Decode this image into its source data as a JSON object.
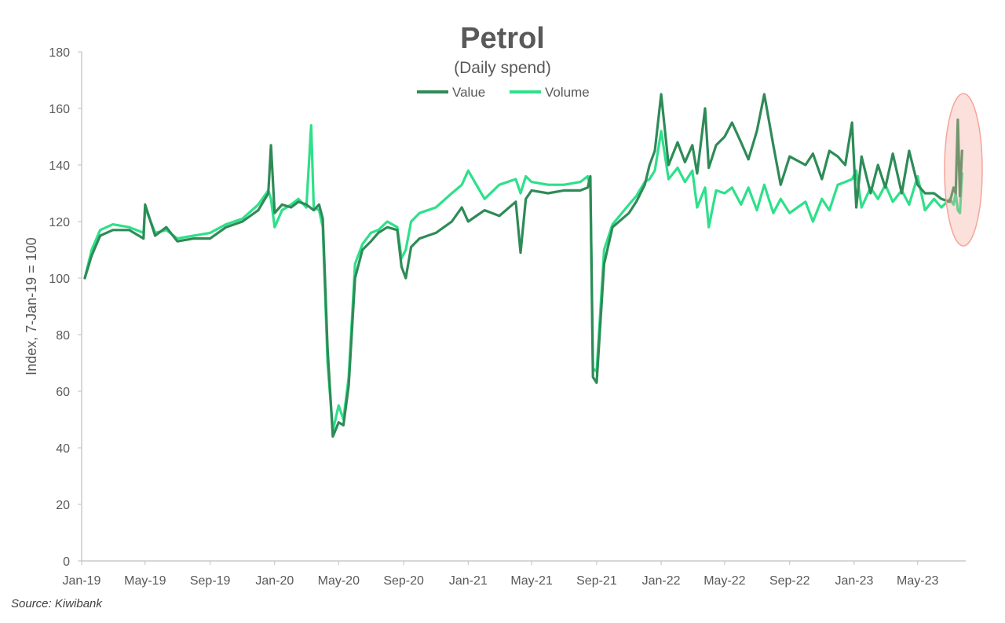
{
  "colors": {
    "value": "#2e8b57",
    "volume": "#2ee08a",
    "highlight": "#f4a59a",
    "axis": "#bfbfbf",
    "text": "#595959"
  },
  "source": "Source: Kiwibank",
  "chart_data": {
    "type": "line",
    "title": "Petrol",
    "subtitle": "(Daily spend)",
    "xlabel": "",
    "ylabel": "Index, 7-Jan-19 = 100",
    "ylim": [
      0,
      180
    ],
    "yticks": [
      "0",
      "20",
      "40",
      "60",
      "80",
      "100",
      "120",
      "140",
      "160",
      "180"
    ],
    "xlim": [
      "2019-01-01",
      "2023-07-31"
    ],
    "xticks": [
      "Jan-19",
      "May-19",
      "Sep-19",
      "Jan-20",
      "May-20",
      "Sep-20",
      "Jan-21",
      "May-21",
      "Sep-21",
      "Jan-22",
      "May-22",
      "Sep-22",
      "Jan-23",
      "May-23"
    ],
    "grid": false,
    "legend": "top-center",
    "annotation": "highlighted ellipse around latest data (Jul-23)",
    "series": [
      {
        "name": "Value",
        "x": [
          "2019-01-07",
          "2019-01-20",
          "2019-02-05",
          "2019-03-01",
          "2019-04-01",
          "2019-04-28",
          "2019-05-01",
          "2019-05-20",
          "2019-06-10",
          "2019-07-01",
          "2019-08-01",
          "2019-09-01",
          "2019-10-01",
          "2019-11-01",
          "2019-12-01",
          "2019-12-20",
          "2019-12-25",
          "2020-01-01",
          "2020-01-15",
          "2020-02-01",
          "2020-02-15",
          "2020-03-01",
          "2020-03-15",
          "2020-03-25",
          "2020-04-01",
          "2020-04-10",
          "2020-04-20",
          "2020-05-01",
          "2020-05-10",
          "2020-05-20",
          "2020-06-01",
          "2020-06-15",
          "2020-07-01",
          "2020-07-15",
          "2020-08-01",
          "2020-08-20",
          "2020-08-28",
          "2020-09-05",
          "2020-09-15",
          "2020-10-01",
          "2020-11-01",
          "2020-12-01",
          "2020-12-20",
          "2021-01-01",
          "2021-02-01",
          "2021-03-01",
          "2021-04-01",
          "2021-04-10",
          "2021-04-20",
          "2021-05-01",
          "2021-06-01",
          "2021-07-01",
          "2021-08-01",
          "2021-08-15",
          "2021-08-20",
          "2021-08-25",
          "2021-09-01",
          "2021-09-15",
          "2021-10-01",
          "2021-11-01",
          "2021-11-15",
          "2021-12-01",
          "2021-12-10",
          "2021-12-20",
          "2022-01-01",
          "2022-01-15",
          "2022-02-01",
          "2022-02-15",
          "2022-03-01",
          "2022-03-10",
          "2022-03-25",
          "2022-04-01",
          "2022-04-15",
          "2022-05-01",
          "2022-05-15",
          "2022-06-01",
          "2022-06-15",
          "2022-07-01",
          "2022-07-15",
          "2022-08-01",
          "2022-08-15",
          "2022-09-01",
          "2022-10-01",
          "2022-10-15",
          "2022-11-01",
          "2022-11-15",
          "2022-12-01",
          "2022-12-15",
          "2022-12-28",
          "2023-01-05",
          "2023-01-15",
          "2023-02-01",
          "2023-02-15",
          "2023-03-01",
          "2023-03-15",
          "2023-04-01",
          "2023-04-15",
          "2023-05-01",
          "2023-05-15",
          "2023-06-01",
          "2023-06-15",
          "2023-07-01",
          "2023-07-08",
          "2023-07-12",
          "2023-07-16",
          "2023-07-20",
          "2023-07-24"
        ],
        "values": [
          100,
          108,
          115,
          117,
          117,
          114,
          126,
          115,
          118,
          113,
          114,
          114,
          118,
          120,
          124,
          130,
          147,
          123,
          126,
          125,
          127,
          126,
          124,
          126,
          121,
          75,
          44,
          49,
          48,
          62,
          100,
          110,
          113,
          116,
          118,
          117,
          104,
          100,
          111,
          114,
          116,
          120,
          125,
          120,
          124,
          122,
          127,
          109,
          128,
          131,
          130,
          131,
          131,
          132,
          136,
          65,
          63,
          105,
          118,
          123,
          127,
          133,
          140,
          145,
          165,
          140,
          148,
          141,
          147,
          137,
          160,
          139,
          147,
          150,
          155,
          148,
          142,
          152,
          165,
          147,
          133,
          143,
          140,
          144,
          135,
          145,
          143,
          140,
          155,
          125,
          143,
          130,
          140,
          132,
          144,
          130,
          145,
          133,
          130,
          130,
          128,
          127,
          132,
          130,
          156,
          129,
          145
        ]
      },
      {
        "name": "Volume",
        "x": [
          "2019-01-07",
          "2019-01-20",
          "2019-02-05",
          "2019-03-01",
          "2019-04-01",
          "2019-04-28",
          "2019-05-01",
          "2019-05-20",
          "2019-06-10",
          "2019-07-01",
          "2019-08-01",
          "2019-09-01",
          "2019-10-01",
          "2019-11-01",
          "2019-12-01",
          "2019-12-20",
          "2019-12-25",
          "2020-01-01",
          "2020-01-15",
          "2020-02-01",
          "2020-02-15",
          "2020-03-01",
          "2020-03-10",
          "2020-03-15",
          "2020-03-25",
          "2020-04-01",
          "2020-04-10",
          "2020-04-20",
          "2020-05-01",
          "2020-05-10",
          "2020-05-20",
          "2020-06-01",
          "2020-06-15",
          "2020-07-01",
          "2020-07-15",
          "2020-08-01",
          "2020-08-20",
          "2020-08-28",
          "2020-09-05",
          "2020-09-15",
          "2020-10-01",
          "2020-11-01",
          "2020-12-01",
          "2020-12-20",
          "2021-01-01",
          "2021-02-01",
          "2021-03-01",
          "2021-04-01",
          "2021-04-10",
          "2021-04-20",
          "2021-05-01",
          "2021-06-01",
          "2021-07-01",
          "2021-08-01",
          "2021-08-15",
          "2021-08-20",
          "2021-08-25",
          "2021-09-01",
          "2021-09-15",
          "2021-10-01",
          "2021-11-01",
          "2021-11-15",
          "2021-12-01",
          "2021-12-10",
          "2021-12-20",
          "2022-01-01",
          "2022-01-15",
          "2022-02-01",
          "2022-02-15",
          "2022-03-01",
          "2022-03-10",
          "2022-03-25",
          "2022-04-01",
          "2022-04-15",
          "2022-05-01",
          "2022-05-15",
          "2022-06-01",
          "2022-06-15",
          "2022-07-01",
          "2022-07-15",
          "2022-08-01",
          "2022-08-15",
          "2022-09-01",
          "2022-10-01",
          "2022-10-15",
          "2022-11-01",
          "2022-11-15",
          "2022-12-01",
          "2022-12-15",
          "2022-12-28",
          "2023-01-05",
          "2023-01-15",
          "2023-02-01",
          "2023-02-15",
          "2023-03-01",
          "2023-03-15",
          "2023-04-01",
          "2023-04-15",
          "2023-05-01",
          "2023-05-15",
          "2023-06-01",
          "2023-06-15",
          "2023-07-01",
          "2023-07-08",
          "2023-07-12",
          "2023-07-16",
          "2023-07-20",
          "2023-07-24"
        ],
        "values": [
          100,
          110,
          117,
          119,
          118,
          116,
          125,
          116,
          117,
          114,
          115,
          116,
          119,
          121,
          126,
          131,
          128,
          118,
          124,
          126,
          128,
          125,
          154,
          125,
          124,
          118,
          70,
          46,
          55,
          50,
          65,
          105,
          112,
          116,
          117,
          120,
          118,
          107,
          110,
          120,
          123,
          125,
          130,
          133,
          138,
          128,
          133,
          135,
          130,
          136,
          134,
          133,
          133,
          134,
          136,
          132,
          68,
          67,
          110,
          119,
          126,
          129,
          134,
          135,
          138,
          152,
          135,
          139,
          134,
          138,
          125,
          132,
          118,
          131,
          130,
          132,
          126,
          132,
          124,
          133,
          123,
          128,
          123,
          127,
          120,
          128,
          124,
          133,
          134,
          135,
          138,
          125,
          132,
          128,
          133,
          127,
          131,
          126,
          136,
          124,
          128,
          125,
          128,
          126,
          130,
          124,
          123,
          137
        ]
      }
    ]
  }
}
